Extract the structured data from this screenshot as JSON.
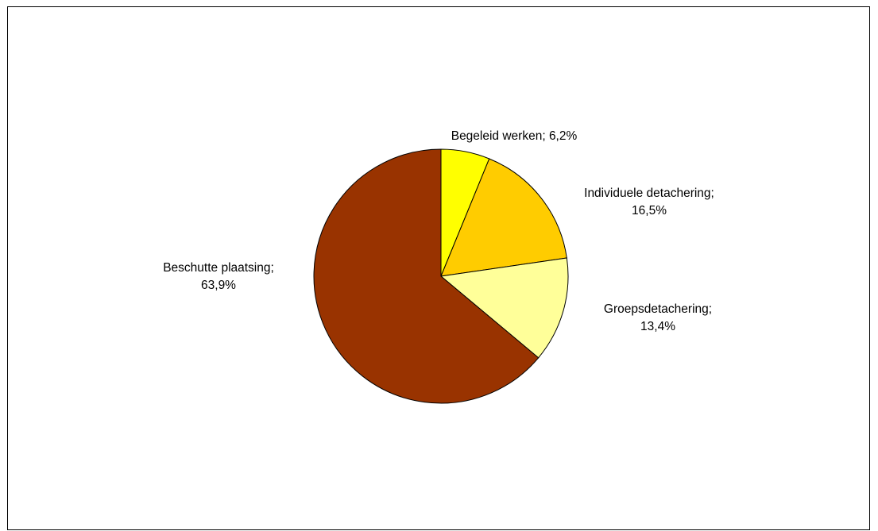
{
  "chart_data": {
    "type": "pie",
    "title": "",
    "legend": "none",
    "slices": [
      {
        "label_line1": "Begeleid werken; 6,2%",
        "label_line2": "",
        "value": 6.2,
        "color": "#FFFF00"
      },
      {
        "label_line1": "Individuele detachering;",
        "label_line2": "16,5%",
        "value": 16.5,
        "color": "#FFCC00"
      },
      {
        "label_line1": "Groepsdetachering;",
        "label_line2": "13,4%",
        "value": 13.4,
        "color": "#FFFF99"
      },
      {
        "label_line1": "Beschutte plaatsing;",
        "label_line2": "63,9%",
        "value": 63.9,
        "color": "#993300"
      }
    ]
  }
}
